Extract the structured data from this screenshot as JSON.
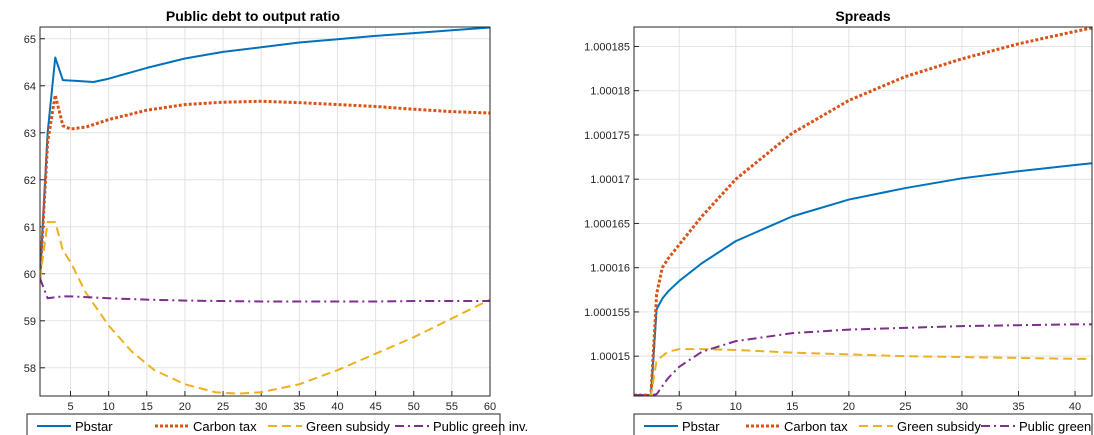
{
  "chart_data": [
    {
      "type": "line",
      "title": "Public debt to output ratio",
      "xlabel": "",
      "ylabel": "",
      "xlim": [
        1,
        60
      ],
      "ylim": [
        57.4,
        65.25
      ],
      "xticks": [
        5,
        10,
        15,
        20,
        25,
        30,
        35,
        40,
        45,
        50,
        55,
        60
      ],
      "yticks": [
        58,
        59,
        60,
        61,
        62,
        63,
        64,
        65
      ],
      "grid": true,
      "legend_position": "bottom",
      "series": [
        {
          "name": "Pbstar",
          "color": "#0072BD",
          "style": "solid",
          "x": [
            1,
            2,
            3,
            4,
            6,
            8,
            10,
            15,
            20,
            25,
            30,
            35,
            40,
            45,
            50,
            55,
            60
          ],
          "y": [
            59.9,
            63.0,
            64.6,
            64.12,
            64.1,
            64.08,
            64.15,
            64.38,
            64.58,
            64.72,
            64.82,
            64.92,
            64.99,
            65.06,
            65.12,
            65.18,
            65.24
          ]
        },
        {
          "name": "Carbon tax",
          "color": "#D95319",
          "style": "dotted",
          "x": [
            1,
            2,
            3,
            4,
            5,
            7,
            10,
            15,
            20,
            25,
            30,
            35,
            40,
            45,
            50,
            55,
            60
          ],
          "y": [
            59.9,
            62.8,
            63.8,
            63.15,
            63.08,
            63.12,
            63.28,
            63.48,
            63.6,
            63.65,
            63.67,
            63.64,
            63.6,
            63.56,
            63.5,
            63.45,
            63.42
          ]
        },
        {
          "name": "Green subsidy",
          "color": "#EDB120",
          "style": "dashed",
          "x": [
            1,
            2,
            3,
            4,
            5,
            7,
            10,
            13,
            16,
            20,
            24,
            27,
            30,
            35,
            40,
            45,
            50,
            55,
            60
          ],
          "y": [
            59.9,
            61.1,
            61.1,
            60.5,
            60.25,
            59.6,
            58.9,
            58.35,
            57.95,
            57.65,
            57.48,
            57.45,
            57.48,
            57.65,
            57.95,
            58.3,
            58.65,
            59.05,
            59.45
          ]
        },
        {
          "name": "Public green inv.",
          "color": "#7E2F8E",
          "style": "dashdot",
          "x": [
            1,
            2,
            3,
            4,
            5,
            10,
            15,
            20,
            25,
            30,
            35,
            40,
            45,
            50,
            55,
            60
          ],
          "y": [
            59.9,
            59.48,
            59.5,
            59.52,
            59.52,
            59.48,
            59.45,
            59.43,
            59.42,
            59.41,
            59.41,
            59.41,
            59.41,
            59.42,
            59.42,
            59.42
          ]
        }
      ]
    },
    {
      "type": "line",
      "title": "Spreads",
      "xlabel": "",
      "ylabel": "",
      "xlim": [
        1,
        41.5
      ],
      "ylim": [
        1.0001455,
        1.0001872
      ],
      "xticks": [
        5,
        10,
        15,
        20,
        25,
        30,
        35,
        40
      ],
      "yticks": [
        "1.00015",
        "1.000155",
        "1.00016",
        "1.000165",
        "1.00017",
        "1.000175",
        "1.00018",
        "1.000185"
      ],
      "grid": true,
      "legend_position": "bottom",
      "series": [
        {
          "name": "Pbstar",
          "color": "#0072BD",
          "style": "solid",
          "x": [
            1,
            2,
            2.5,
            3,
            3.5,
            4,
            5,
            7,
            10,
            15,
            20,
            25,
            30,
            35,
            40,
            41.5
          ],
          "y": [
            1.0001456,
            1.0001456,
            1.0001456,
            1.0001553,
            1.0001565,
            1.0001573,
            1.0001585,
            1.0001605,
            1.000163,
            1.0001658,
            1.0001677,
            1.000169,
            1.0001701,
            1.0001709,
            1.0001716,
            1.0001718
          ]
        },
        {
          "name": "Carbon tax",
          "color": "#D95319",
          "style": "dotted",
          "x": [
            1,
            2,
            2.5,
            3,
            3.5,
            4,
            5,
            7,
            10,
            15,
            20,
            25,
            30,
            35,
            40,
            41.5
          ],
          "y": [
            1.0001456,
            1.0001456,
            1.0001456,
            1.000157,
            1.00016,
            1.000161,
            1.0001626,
            1.0001658,
            1.00017,
            1.0001752,
            1.0001789,
            1.0001816,
            1.0001836,
            1.0001853,
            1.0001867,
            1.0001871
          ]
        },
        {
          "name": "Green subsidy",
          "color": "#EDB120",
          "style": "dashed",
          "x": [
            1,
            2,
            2.5,
            3,
            4,
            5,
            7,
            10,
            15,
            20,
            25,
            30,
            35,
            40,
            41.5
          ],
          "y": [
            1.0001456,
            1.0001456,
            1.0001456,
            1.0001495,
            1.0001505,
            1.0001508,
            1.0001508,
            1.0001507,
            1.0001504,
            1.0001502,
            1.00015,
            1.0001499,
            1.0001498,
            1.0001497,
            1.0001497
          ]
        },
        {
          "name": "Public green inv.",
          "color": "#7E2F8E",
          "style": "dashdot",
          "x": [
            1,
            2,
            2.5,
            3,
            4,
            5,
            7,
            10,
            15,
            20,
            25,
            30,
            35,
            40,
            41.5
          ],
          "y": [
            1.0001456,
            1.0001456,
            1.0001456,
            1.0001457,
            1.0001475,
            1.0001488,
            1.0001505,
            1.0001517,
            1.0001526,
            1.000153,
            1.0001532,
            1.0001534,
            1.0001535,
            1.0001536,
            1.0001536
          ]
        }
      ]
    }
  ]
}
